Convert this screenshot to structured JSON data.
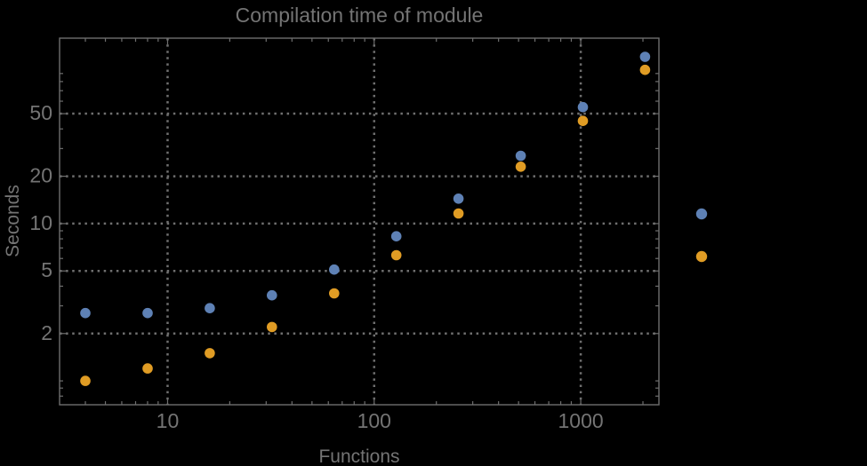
{
  "chart_data": {
    "type": "scatter",
    "title": "Compilation time of module",
    "xlabel": "Functions",
    "ylabel": "Seconds",
    "x_scale": "log",
    "y_scale": "log",
    "xlim": [
      3.0,
      2390
    ],
    "ylim": [
      0.705,
      151
    ],
    "grid": true,
    "grid_style": "dotted",
    "x": [
      4,
      8,
      16,
      32,
      64,
      128,
      256,
      512,
      1024,
      2048
    ],
    "series": [
      {
        "name": "series-1-blue",
        "color": "#5e81b5",
        "values": [
          2.7,
          2.7,
          2.9,
          3.5,
          5.1,
          8.3,
          14.4,
          27,
          55,
          115
        ]
      },
      {
        "name": "series-2-orange",
        "color": "#e09c24",
        "values": [
          1.0,
          1.2,
          1.5,
          2.2,
          3.6,
          6.3,
          11.6,
          23,
          45,
          95
        ]
      }
    ],
    "x_ticks": {
      "major": [
        {
          "value": 10,
          "label": "10"
        },
        {
          "value": 100,
          "label": "100"
        },
        {
          "value": 1000,
          "label": "1000"
        }
      ],
      "minor": [
        4,
        5,
        6,
        7,
        8,
        9,
        20,
        30,
        40,
        50,
        60,
        70,
        80,
        90,
        200,
        300,
        400,
        500,
        600,
        700,
        800,
        900,
        2000
      ]
    },
    "y_ticks": {
      "major": [
        {
          "value": 2,
          "label": "2"
        },
        {
          "value": 5,
          "label": "5"
        },
        {
          "value": 10,
          "label": "10"
        },
        {
          "value": 20,
          "label": "20"
        },
        {
          "value": 50,
          "label": "50"
        }
      ],
      "minor": [
        0.8,
        0.9,
        1,
        3,
        4,
        6,
        7,
        8,
        9,
        30,
        40,
        60,
        70,
        80,
        90
      ]
    },
    "legend": {
      "position": "right-center",
      "markers": [
        {
          "series": "series-1-blue",
          "color": "#5e81b5",
          "label": ""
        },
        {
          "series": "series-2-orange",
          "color": "#e09c24",
          "label": ""
        }
      ]
    },
    "colors": {
      "background": "#000000",
      "frame": "#6e6e6e",
      "grid": "#6f6f6f",
      "text": "#747474"
    }
  }
}
